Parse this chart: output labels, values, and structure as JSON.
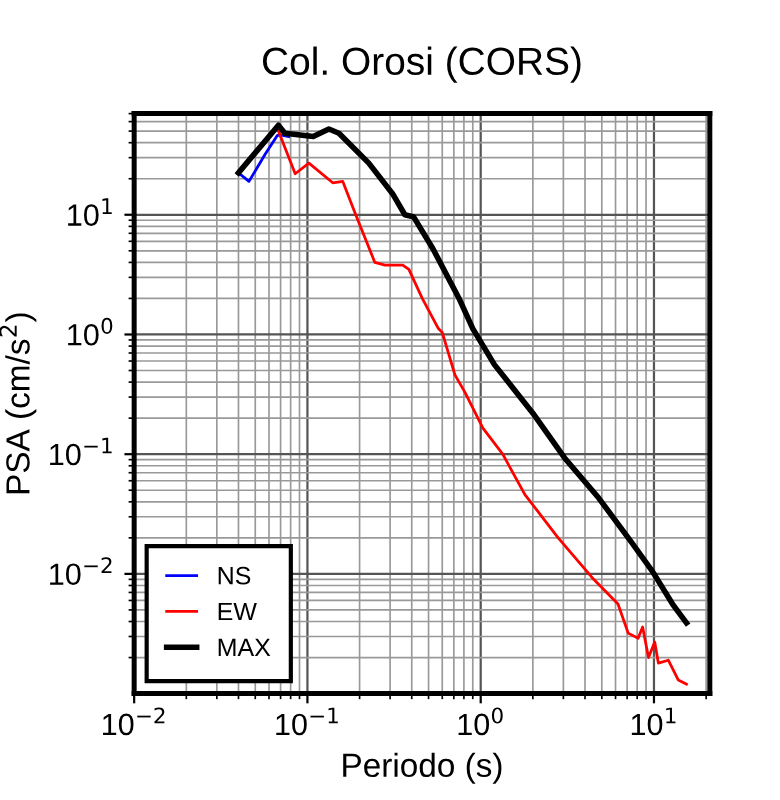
{
  "chart_data": {
    "type": "line",
    "title": "Col. Orosi (CORS)",
    "xlabel": "Periodo (s)",
    "ylabel": "PSA (cm/s$^{2}$)",
    "log": "xy",
    "xlim": [
      0.01,
      21
    ],
    "ylim": [
      0.001,
      70
    ],
    "xticks": [
      {
        "value": 0.01,
        "label": "10$^{−2}$"
      },
      {
        "value": 0.1,
        "label": "10$^{−1}$"
      },
      {
        "value": 1,
        "label": "10$^{0}$"
      },
      {
        "value": 10,
        "label": "10$^{1}$"
      }
    ],
    "yticks": [
      {
        "value": 0.01,
        "label": "10$^{−2}$"
      },
      {
        "value": 0.1,
        "label": "10$^{−1}$"
      },
      {
        "value": 1,
        "label": "10$^{0}$"
      },
      {
        "value": 10,
        "label": "10$^{1}$"
      }
    ],
    "grid": true,
    "legend": "bottom left",
    "line_style": "solid",
    "marker": "none",
    "series": [
      {
        "name": "NS",
        "color": "#0000ff",
        "x": [
          0.04,
          0.046,
          0.057,
          0.067,
          0.072,
          0.078
        ],
        "values": [
          22.4,
          19,
          32,
          46,
          46,
          45
        ]
      },
      {
        "name": "EW",
        "color": "#ff0000",
        "x": [
          0.068,
          0.085,
          0.102,
          0.14,
          0.16,
          0.19,
          0.245,
          0.28,
          0.355,
          0.385,
          0.46,
          0.57,
          0.6,
          0.71,
          0.81,
          1.03,
          1.34,
          1.8,
          2.8,
          4.4,
          6.2,
          7.1,
          8.1,
          8.6,
          9.3,
          10.1,
          10.6,
          12.1,
          13.8,
          15.4
        ],
        "values": [
          50,
          22,
          27,
          18.5,
          19,
          10,
          4.0,
          3.8,
          3.8,
          3.5,
          2.0,
          1.12,
          1.04,
          0.46,
          0.33,
          0.165,
          0.1,
          0.046,
          0.02,
          0.0093,
          0.0056,
          0.0032,
          0.0029,
          0.0036,
          0.002,
          0.0027,
          0.0018,
          0.0019,
          0.0013,
          0.0012
        ]
      },
      {
        "name": "MAX",
        "color": "#000000",
        "x": [
          0.04,
          0.068,
          0.074,
          0.108,
          0.133,
          0.152,
          0.226,
          0.31,
          0.365,
          0.41,
          0.53,
          0.75,
          0.9,
          1.2,
          2.0,
          3.05,
          4.8,
          7.5,
          9.8,
          12.8,
          15.4
        ],
        "values": [
          22.4,
          56,
          48,
          45,
          52,
          48,
          27,
          15,
          10,
          9.6,
          5.2,
          2.0,
          1.12,
          0.56,
          0.22,
          0.093,
          0.043,
          0.018,
          0.0105,
          0.0056,
          0.0039
        ]
      }
    ]
  }
}
